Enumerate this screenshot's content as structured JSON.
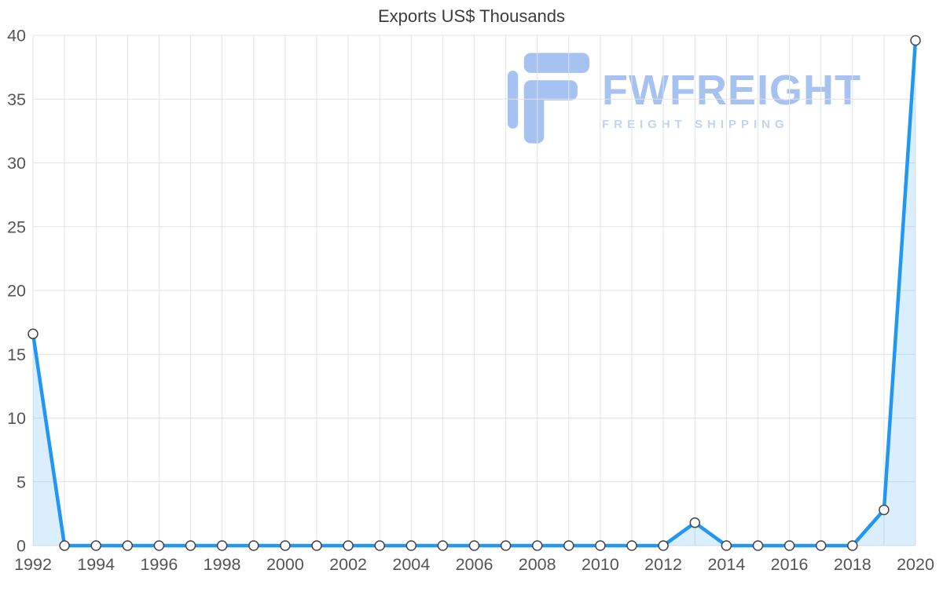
{
  "title": "Exports US$ Thousands",
  "watermark": {
    "brand": "FWFREIGHT",
    "tagline": "FREIGHT SHIPPING",
    "brand_color": "#a6c2f1",
    "tagline_color": "#bcd4f5"
  },
  "chart_data": {
    "type": "line",
    "title": "Exports US$ Thousands",
    "x": [
      1992,
      1993,
      1994,
      1995,
      1996,
      1997,
      1998,
      1999,
      2000,
      2001,
      2002,
      2003,
      2004,
      2005,
      2006,
      2007,
      2008,
      2009,
      2010,
      2011,
      2012,
      2013,
      2014,
      2015,
      2016,
      2017,
      2018,
      2019,
      2020
    ],
    "values": [
      16.6,
      0,
      0,
      0,
      0,
      0,
      0,
      0,
      0,
      0,
      0,
      0,
      0,
      0,
      0,
      0,
      0,
      0,
      0,
      0,
      0,
      1.8,
      0,
      0,
      0,
      0,
      0,
      2.8,
      39.6
    ],
    "ylim": [
      0,
      40
    ],
    "yticks": [
      0,
      5,
      10,
      15,
      20,
      25,
      30,
      35,
      40
    ],
    "xtick_step": 2,
    "grid": true,
    "legend": "none",
    "line_color": "#2196f3",
    "area_opacity": 0.16,
    "marker_fill": "#ffffff",
    "marker_stroke": "#444444",
    "axis_color": "#555555",
    "grid_color": "#e3e3e3"
  }
}
